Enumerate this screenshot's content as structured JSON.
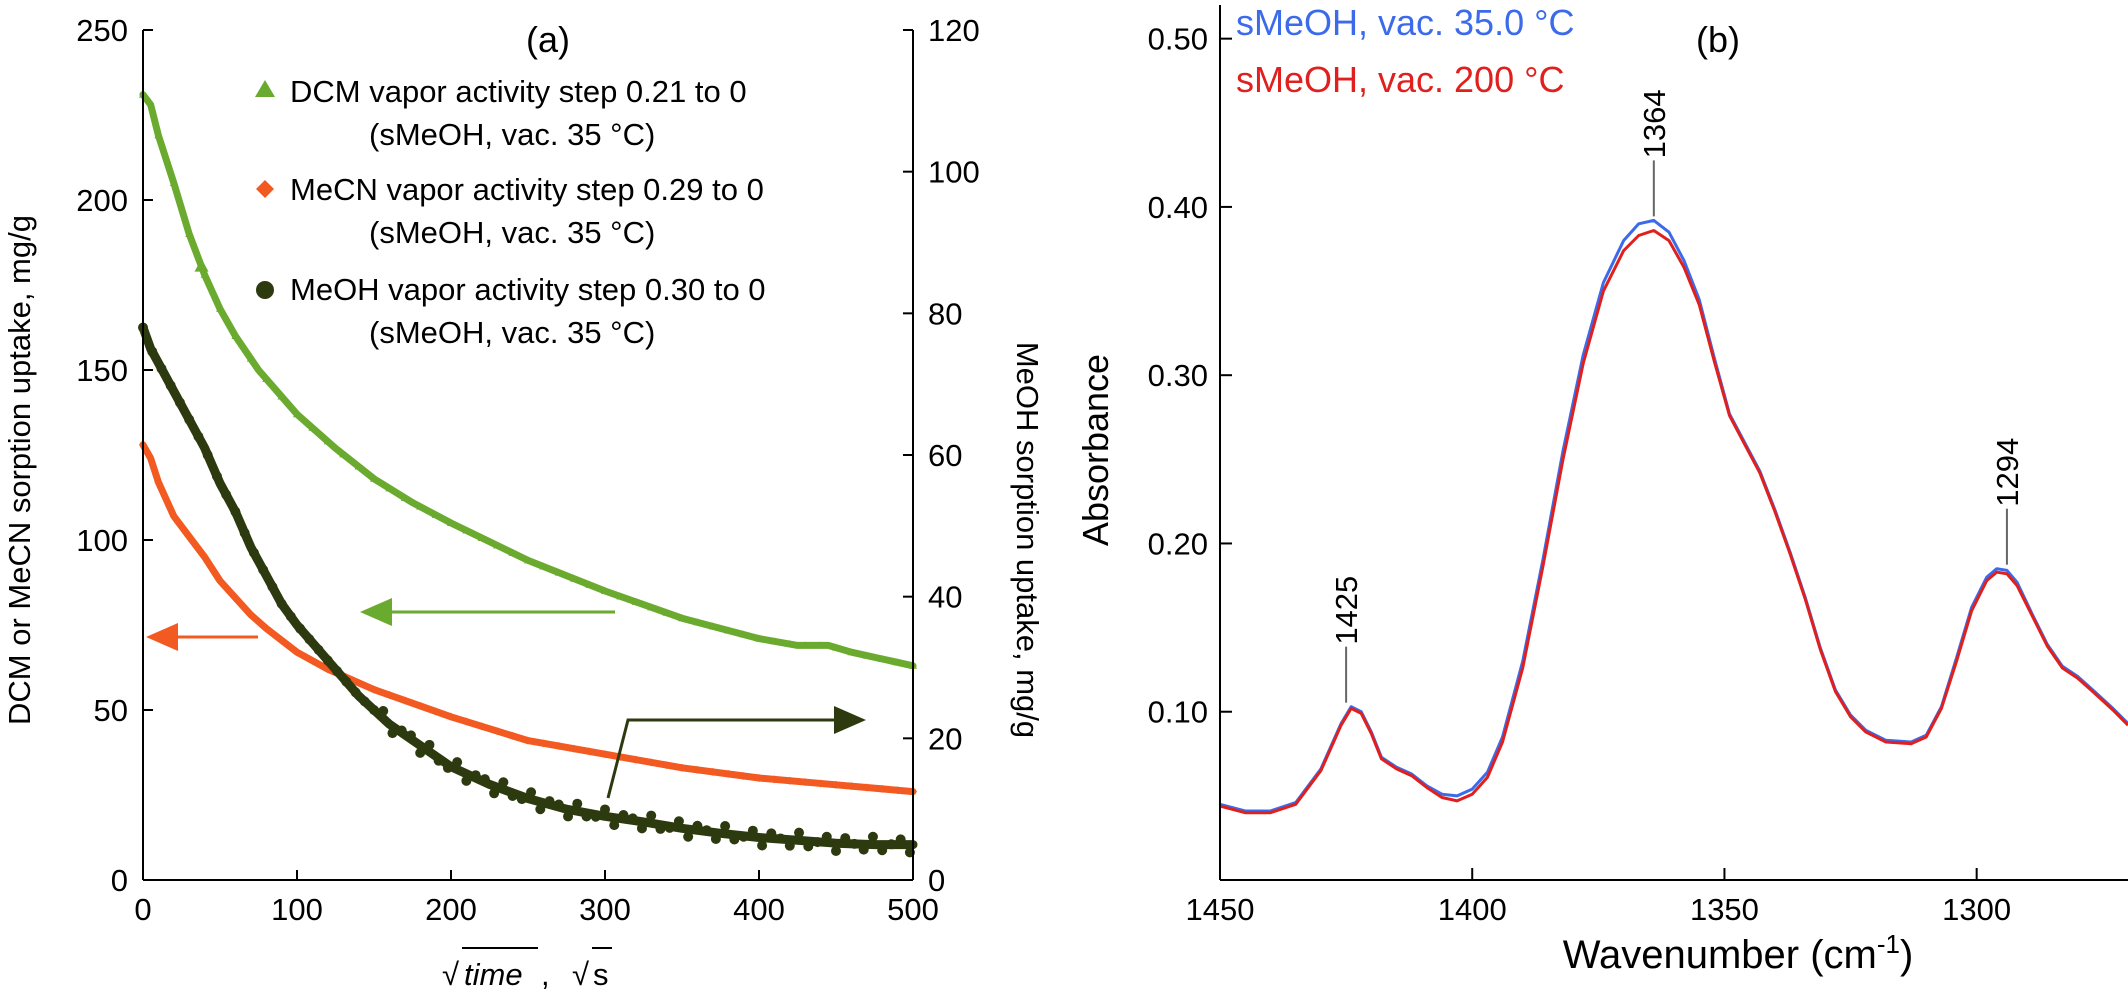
{
  "chart_data": [
    {
      "type": "scatter",
      "panel_label": "(a)",
      "xlabel_time": "time",
      "xlabel_sep": ",",
      "xlabel_unit": "s",
      "xlabel_root": "√",
      "ylabel_left": "DCM or MeCN sorption uptake, mg/g",
      "ylabel_right": "MeOH sorption uptake, mg/g",
      "xlim": [
        0,
        500
      ],
      "ylim_left": [
        0,
        250
      ],
      "ylim_right": [
        0,
        120
      ],
      "xticks": [
        0,
        100,
        200,
        300,
        400,
        500
      ],
      "yticks_left": [
        0,
        50,
        100,
        150,
        200,
        250
      ],
      "yticks_right": [
        0,
        20,
        40,
        60,
        80,
        100,
        120
      ],
      "legend_position": "top-right",
      "series": [
        {
          "name": "DCM vapor activity step 0.21 to 0",
          "name_line2": "(sMeOH, vac. 35 °C)",
          "axis": "left",
          "color": "#6aaa2e",
          "marker": "triangle",
          "points": [
            [
              0,
              231
            ],
            [
              5,
              228
            ],
            [
              10,
              219
            ],
            [
              20,
              205
            ],
            [
              30,
              190
            ],
            [
              40,
              178
            ],
            [
              50,
              168
            ],
            [
              60,
              160
            ],
            [
              75,
              150
            ],
            [
              100,
              137
            ],
            [
              125,
              127
            ],
            [
              150,
              118
            ],
            [
              175,
              111
            ],
            [
              200,
              105
            ],
            [
              250,
              94
            ],
            [
              300,
              85
            ],
            [
              350,
              77
            ],
            [
              400,
              71
            ],
            [
              425,
              69
            ],
            [
              445,
              69
            ],
            [
              460,
              67
            ],
            [
              480,
              65
            ],
            [
              500,
              63
            ]
          ]
        },
        {
          "name": "MeCN vapor activity step 0.29 to 0",
          "name_line2": "(sMeOH, vac. 35 °C)",
          "axis": "left",
          "color": "#f25a22",
          "marker": "diamond",
          "points": [
            [
              0,
              128
            ],
            [
              5,
              124
            ],
            [
              10,
              117
            ],
            [
              20,
              107
            ],
            [
              30,
              101
            ],
            [
              40,
              95
            ],
            [
              50,
              88
            ],
            [
              60,
              83
            ],
            [
              70,
              78
            ],
            [
              80,
              74
            ],
            [
              100,
              67
            ],
            [
              120,
              62
            ],
            [
              150,
              56
            ],
            [
              175,
              52
            ],
            [
              200,
              48
            ],
            [
              250,
              41
            ],
            [
              300,
              37
            ],
            [
              350,
              33
            ],
            [
              400,
              30
            ],
            [
              450,
              28
            ],
            [
              500,
              26
            ]
          ]
        },
        {
          "name": "MeOH vapor activity step 0.30 to 0",
          "name_line2": "(sMeOH, vac. 35 °C)",
          "axis": "right",
          "color": "#2d3a10",
          "marker": "circle",
          "points": [
            [
              0,
              78
            ],
            [
              5,
              75
            ],
            [
              10,
              73
            ],
            [
              20,
              69
            ],
            [
              30,
              65
            ],
            [
              40,
              61
            ],
            [
              50,
              56
            ],
            [
              60,
              52
            ],
            [
              70,
              47
            ],
            [
              80,
              43
            ],
            [
              90,
              39
            ],
            [
              100,
              36
            ],
            [
              120,
              31
            ],
            [
              140,
              26
            ],
            [
              160,
              22
            ],
            [
              180,
              19
            ],
            [
              200,
              16
            ],
            [
              225,
              13.5
            ],
            [
              250,
              11.5
            ],
            [
              275,
              10
            ],
            [
              300,
              9
            ],
            [
              325,
              8.2
            ],
            [
              350,
              7.3
            ],
            [
              375,
              6.6
            ],
            [
              400,
              6
            ],
            [
              425,
              5.6
            ],
            [
              450,
              5.2
            ],
            [
              475,
              5
            ],
            [
              500,
              5
            ]
          ]
        }
      ],
      "annotations": [
        "left-arrow-dcm",
        "left-arrow-mecn",
        "right-arrow-meoh"
      ]
    },
    {
      "type": "line",
      "panel_label": "(b)",
      "xlabel": "Wavenumber (cm",
      "xlabel_sup": "-1",
      "xlabel_close": ")",
      "ylabel": "Absorbance",
      "xlim": [
        1450,
        1270
      ],
      "ylim": [
        0.0,
        0.52
      ],
      "xticks": [
        1450,
        1400,
        1350,
        1300
      ],
      "yticks": [
        0.1,
        0.2,
        0.3,
        0.4,
        0.5
      ],
      "ytick_labels": [
        "0.10",
        "0.20",
        "0.30",
        "0.40",
        "0.50"
      ],
      "legend_position": "top-left",
      "series": [
        {
          "name": "sMeOH, vac. 35.0 °C",
          "color": "#3b6bea",
          "points": [
            [
              1450,
              0.045
            ],
            [
              1445,
              0.041
            ],
            [
              1440,
              0.041
            ],
            [
              1435,
              0.046
            ],
            [
              1430,
              0.066
            ],
            [
              1426,
              0.093
            ],
            [
              1424,
              0.103
            ],
            [
              1422,
              0.1
            ],
            [
              1420,
              0.088
            ],
            [
              1418,
              0.073
            ],
            [
              1415,
              0.067
            ],
            [
              1412,
              0.063
            ],
            [
              1409,
              0.056
            ],
            [
              1406,
              0.051
            ],
            [
              1403,
              0.05
            ],
            [
              1400,
              0.054
            ],
            [
              1397,
              0.064
            ],
            [
              1394,
              0.085
            ],
            [
              1390,
              0.13
            ],
            [
              1386,
              0.19
            ],
            [
              1382,
              0.255
            ],
            [
              1378,
              0.312
            ],
            [
              1374,
              0.355
            ],
            [
              1370,
              0.38
            ],
            [
              1367,
              0.39
            ],
            [
              1364,
              0.392
            ],
            [
              1361,
              0.385
            ],
            [
              1358,
              0.368
            ],
            [
              1355,
              0.345
            ],
            [
              1352,
              0.31
            ],
            [
              1349,
              0.277
            ],
            [
              1346,
              0.26
            ],
            [
              1343,
              0.243
            ],
            [
              1340,
              0.22
            ],
            [
              1337,
              0.195
            ],
            [
              1334,
              0.168
            ],
            [
              1331,
              0.138
            ],
            [
              1328,
              0.113
            ],
            [
              1325,
              0.098
            ],
            [
              1322,
              0.089
            ],
            [
              1318,
              0.083
            ],
            [
              1313,
              0.082
            ],
            [
              1310,
              0.086
            ],
            [
              1307,
              0.103
            ],
            [
              1304,
              0.132
            ],
            [
              1301,
              0.162
            ],
            [
              1298,
              0.18
            ],
            [
              1296,
              0.185
            ],
            [
              1294,
              0.184
            ],
            [
              1292,
              0.177
            ],
            [
              1289,
              0.158
            ],
            [
              1286,
              0.14
            ],
            [
              1283,
              0.127
            ],
            [
              1280,
              0.121
            ],
            [
              1277,
              0.113
            ],
            [
              1273,
              0.102
            ],
            [
              1270,
              0.093
            ]
          ]
        },
        {
          "name": "sMeOH, vac. 200 °C",
          "color": "#e0201e",
          "points": [
            [
              1450,
              0.044
            ],
            [
              1445,
              0.04
            ],
            [
              1440,
              0.04
            ],
            [
              1435,
              0.045
            ],
            [
              1430,
              0.065
            ],
            [
              1426,
              0.092
            ],
            [
              1424,
              0.102
            ],
            [
              1422,
              0.099
            ],
            [
              1420,
              0.087
            ],
            [
              1418,
              0.072
            ],
            [
              1415,
              0.066
            ],
            [
              1412,
              0.062
            ],
            [
              1409,
              0.055
            ],
            [
              1406,
              0.049
            ],
            [
              1403,
              0.047
            ],
            [
              1400,
              0.051
            ],
            [
              1397,
              0.061
            ],
            [
              1394,
              0.082
            ],
            [
              1390,
              0.126
            ],
            [
              1386,
              0.186
            ],
            [
              1382,
              0.25
            ],
            [
              1378,
              0.307
            ],
            [
              1374,
              0.35
            ],
            [
              1370,
              0.374
            ],
            [
              1367,
              0.383
            ],
            [
              1364,
              0.386
            ],
            [
              1361,
              0.38
            ],
            [
              1358,
              0.364
            ],
            [
              1355,
              0.342
            ],
            [
              1352,
              0.308
            ],
            [
              1349,
              0.276
            ],
            [
              1346,
              0.259
            ],
            [
              1343,
              0.242
            ],
            [
              1340,
              0.219
            ],
            [
              1337,
              0.194
            ],
            [
              1334,
              0.167
            ],
            [
              1331,
              0.137
            ],
            [
              1328,
              0.112
            ],
            [
              1325,
              0.097
            ],
            [
              1322,
              0.088
            ],
            [
              1318,
              0.082
            ],
            [
              1313,
              0.081
            ],
            [
              1310,
              0.085
            ],
            [
              1307,
              0.102
            ],
            [
              1304,
              0.13
            ],
            [
              1301,
              0.16
            ],
            [
              1298,
              0.178
            ],
            [
              1296,
              0.183
            ],
            [
              1294,
              0.182
            ],
            [
              1292,
              0.175
            ],
            [
              1289,
              0.157
            ],
            [
              1286,
              0.139
            ],
            [
              1283,
              0.126
            ],
            [
              1280,
              0.12
            ],
            [
              1277,
              0.112
            ],
            [
              1273,
              0.101
            ],
            [
              1270,
              0.092
            ]
          ]
        }
      ],
      "peak_labels": [
        {
          "x": 1425,
          "y": 0.103,
          "label": "1425"
        },
        {
          "x": 1364,
          "y": 0.392,
          "label": "1364"
        },
        {
          "x": 1294,
          "y": 0.185,
          "label": "1294"
        }
      ]
    }
  ]
}
